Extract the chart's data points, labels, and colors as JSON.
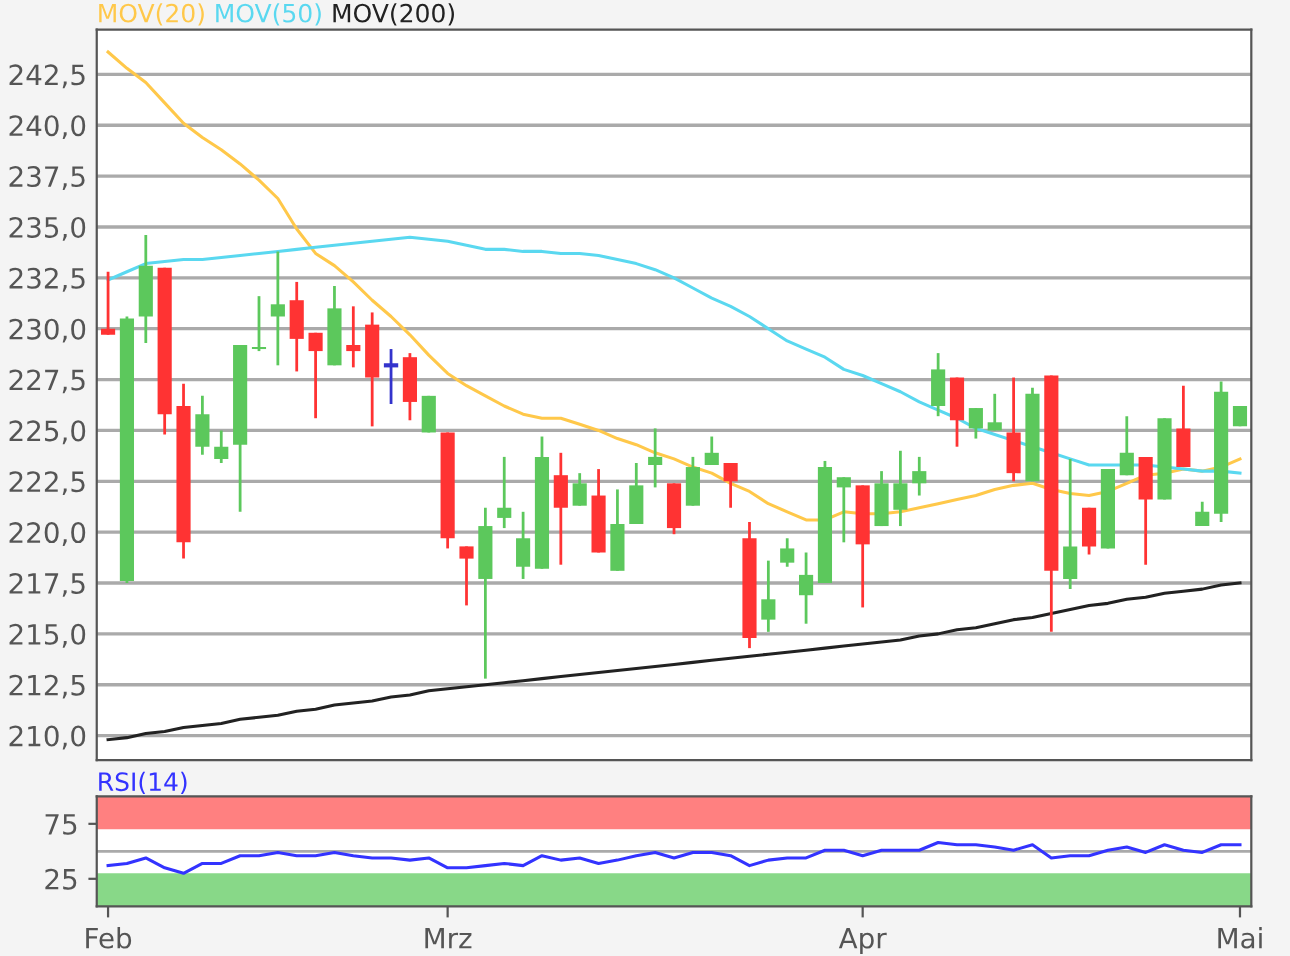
{
  "chart_data": [
    {
      "type": "candlestick",
      "categories": [
        null,
        null,
        null,
        null,
        null,
        null,
        null,
        null,
        null,
        null,
        null,
        null,
        null,
        null,
        null,
        null,
        null,
        null,
        null,
        null,
        null,
        null,
        null,
        null,
        null,
        null,
        null,
        null,
        null,
        null,
        null,
        null,
        null,
        null,
        null,
        null,
        null,
        null,
        null,
        null,
        null,
        null,
        null,
        null,
        null,
        null,
        null,
        null,
        null,
        null,
        null,
        null,
        null,
        null,
        null,
        null,
        null,
        null,
        null,
        null,
        null
      ],
      "ohlc": [
        [
          230.0,
          232.8,
          229.7,
          229.7
        ],
        [
          217.6,
          230.6,
          217.5,
          230.5
        ],
        [
          230.6,
          234.6,
          229.3,
          233.1
        ],
        [
          233.0,
          233.0,
          224.8,
          225.8
        ],
        [
          226.2,
          227.3,
          218.7,
          219.5
        ],
        [
          224.2,
          226.7,
          223.8,
          225.8
        ],
        [
          223.6,
          225.0,
          223.4,
          224.2
        ],
        [
          224.3,
          229.2,
          221.0,
          229.2
        ],
        [
          229.0,
          231.6,
          228.9,
          229.1
        ],
        [
          230.6,
          233.8,
          228.2,
          231.2
        ],
        [
          231.4,
          232.3,
          227.9,
          229.5
        ],
        [
          229.8,
          229.8,
          225.6,
          228.9
        ],
        [
          228.2,
          232.1,
          228.2,
          231.0
        ],
        [
          229.2,
          231.1,
          228.1,
          228.9
        ],
        [
          230.2,
          230.8,
          225.2,
          227.6
        ],
        [
          228.2,
          229.0,
          226.3,
          228.2
        ],
        [
          228.6,
          228.8,
          225.5,
          226.4
        ],
        [
          224.9,
          226.7,
          224.9,
          226.7
        ],
        [
          224.9,
          224.9,
          219.2,
          219.7
        ],
        [
          219.3,
          219.3,
          216.4,
          218.7
        ],
        [
          217.7,
          221.2,
          212.8,
          220.3
        ],
        [
          220.7,
          223.7,
          220.2,
          221.2
        ],
        [
          218.3,
          221.0,
          217.7,
          219.7
        ],
        [
          218.2,
          224.7,
          218.2,
          223.7
        ],
        [
          222.8,
          223.9,
          218.4,
          221.2
        ],
        [
          221.3,
          222.9,
          221.3,
          222.4
        ],
        [
          221.8,
          223.1,
          219.0,
          219.0
        ],
        [
          218.1,
          222.1,
          218.1,
          220.4
        ],
        [
          220.4,
          223.4,
          220.4,
          222.3
        ],
        [
          223.3,
          225.1,
          222.2,
          223.7
        ],
        [
          222.4,
          222.4,
          219.9,
          220.2
        ],
        [
          221.3,
          223.7,
          221.3,
          223.2
        ],
        [
          223.3,
          224.7,
          223.3,
          223.9
        ],
        [
          223.4,
          223.4,
          221.2,
          222.5
        ],
        [
          219.7,
          220.5,
          214.3,
          214.8
        ],
        [
          215.7,
          218.6,
          215.1,
          216.7
        ],
        [
          218.5,
          219.7,
          218.3,
          219.2
        ],
        [
          216.9,
          219.0,
          215.5,
          217.9
        ],
        [
          217.5,
          223.5,
          217.5,
          223.2
        ],
        [
          222.2,
          222.7,
          219.5,
          222.7
        ],
        [
          222.3,
          222.3,
          216.3,
          219.4
        ],
        [
          220.3,
          223.0,
          220.3,
          222.4
        ],
        [
          221.1,
          224.0,
          220.3,
          222.4
        ],
        [
          222.4,
          223.7,
          221.8,
          223.0
        ],
        [
          226.2,
          228.8,
          225.7,
          228.0
        ],
        [
          227.6,
          227.6,
          224.2,
          225.5
        ],
        [
          225.1,
          226.1,
          224.6,
          226.1
        ],
        [
          225.0,
          226.8,
          225.0,
          225.4
        ],
        [
          224.9,
          227.6,
          222.5,
          222.9
        ],
        [
          222.5,
          227.1,
          222.5,
          226.8
        ],
        [
          227.7,
          227.7,
          215.1,
          218.1
        ],
        [
          217.7,
          223.6,
          217.2,
          219.3
        ],
        [
          221.2,
          221.2,
          218.9,
          219.3
        ],
        [
          219.2,
          223.1,
          219.2,
          223.1
        ],
        [
          222.8,
          225.7,
          222.8,
          223.9
        ],
        [
          223.7,
          223.7,
          218.4,
          221.6
        ],
        [
          221.6,
          225.6,
          221.6,
          225.6
        ],
        [
          225.1,
          227.2,
          223.2,
          223.2
        ],
        [
          220.3,
          221.5,
          220.3,
          221.0
        ],
        [
          220.9,
          227.4,
          220.5,
          226.9
        ],
        [
          225.2,
          226.2,
          225.2,
          226.2
        ]
      ],
      "colors": [
        "#ff3333",
        "#5cc85c",
        "#5cc85c",
        "#ff3333",
        "#ff3333",
        "#5cc85c",
        "#5cc85c",
        "#5cc85c",
        "#5cc85c",
        "#5cc85c",
        "#ff3333",
        "#ff3333",
        "#5cc85c",
        "#ff3333",
        "#ff3333",
        "#3333cc",
        "#ff3333",
        "#5cc85c",
        "#ff3333",
        "#ff3333",
        "#5cc85c",
        "#5cc85c",
        "#5cc85c",
        "#5cc85c",
        "#ff3333",
        "#5cc85c",
        "#ff3333",
        "#5cc85c",
        "#5cc85c",
        "#5cc85c",
        "#ff3333",
        "#5cc85c",
        "#5cc85c",
        "#ff3333",
        "#ff3333",
        "#5cc85c",
        "#5cc85c",
        "#5cc85c",
        "#5cc85c",
        "#5cc85c",
        "#ff3333",
        "#5cc85c",
        "#5cc85c",
        "#5cc85c",
        "#5cc85c",
        "#ff3333",
        "#5cc85c",
        "#5cc85c",
        "#ff3333",
        "#5cc85c",
        "#ff3333",
        "#5cc85c",
        "#ff3333",
        "#5cc85c",
        "#5cc85c",
        "#ff3333",
        "#5cc85c",
        "#ff3333",
        "#5cc85c",
        "#5cc85c",
        "#5cc85c"
      ],
      "series": [
        {
          "name": "MOV(20)",
          "type": "line",
          "color": "#ffc84a",
          "values": [
            243.6,
            242.8,
            242.1,
            241.1,
            240.1,
            239.4,
            238.8,
            238.1,
            237.3,
            236.4,
            234.9,
            233.7,
            233.1,
            232.3,
            231.4,
            230.6,
            229.7,
            228.7,
            227.8,
            227.2,
            226.7,
            226.2,
            225.8,
            225.6,
            225.6,
            225.3,
            225.0,
            224.6,
            224.3,
            223.9,
            223.6,
            223.2,
            222.9,
            222.4,
            222.0,
            221.4,
            221.0,
            220.6,
            220.6,
            221.0,
            220.9,
            220.9,
            221.0,
            221.2,
            221.4,
            221.6,
            221.8,
            222.1,
            222.3,
            222.4,
            222.1,
            221.9,
            221.8,
            222.0,
            222.4,
            222.8,
            222.9,
            223.1,
            223.0,
            223.2,
            223.6
          ]
        },
        {
          "name": "MOV(50)",
          "type": "line",
          "color": "#5ad8f0",
          "values": [
            232.4,
            232.8,
            233.2,
            233.3,
            233.4,
            233.4,
            233.5,
            233.6,
            233.7,
            233.8,
            233.9,
            234.0,
            234.1,
            234.2,
            234.3,
            234.4,
            234.5,
            234.4,
            234.3,
            234.1,
            233.9,
            233.9,
            233.8,
            233.8,
            233.7,
            233.7,
            233.6,
            233.4,
            233.2,
            232.9,
            232.5,
            232.0,
            231.5,
            231.1,
            230.6,
            230.0,
            229.4,
            229.0,
            228.6,
            228.0,
            227.7,
            227.3,
            226.9,
            226.4,
            226.0,
            225.6,
            225.1,
            224.8,
            224.5,
            224.2,
            223.9,
            223.6,
            223.3,
            223.3,
            223.3,
            223.3,
            223.2,
            223.1,
            223.0,
            223.0,
            222.9
          ]
        },
        {
          "name": "MOV(200)",
          "type": "line",
          "color": "#222222",
          "values": [
            209.8,
            209.9,
            210.1,
            210.2,
            210.4,
            210.5,
            210.6,
            210.8,
            210.9,
            211.0,
            211.2,
            211.3,
            211.5,
            211.6,
            211.7,
            211.9,
            212.0,
            212.2,
            212.3,
            212.4,
            212.5,
            212.6,
            212.7,
            212.8,
            212.9,
            213.0,
            213.1,
            213.2,
            213.3,
            213.4,
            213.5,
            213.6,
            213.7,
            213.8,
            213.9,
            214.0,
            214.1,
            214.2,
            214.3,
            214.4,
            214.5,
            214.6,
            214.7,
            214.9,
            215.0,
            215.2,
            215.3,
            215.5,
            215.7,
            215.8,
            216.0,
            216.2,
            216.4,
            216.5,
            216.7,
            216.8,
            217.0,
            217.1,
            217.2,
            217.4,
            217.5
          ]
        }
      ],
      "ylim": [
        208.8,
        244.7
      ],
      "yticks": [
        {
          "value": 210.0,
          "label": "210,0"
        },
        {
          "value": 212.5,
          "label": "212,5"
        },
        {
          "value": 215.0,
          "label": "215,0"
        },
        {
          "value": 217.5,
          "label": "217,5"
        },
        {
          "value": 220.0,
          "label": "220,0"
        },
        {
          "value": 222.5,
          "label": "222,5"
        },
        {
          "value": 225.0,
          "label": "225,0"
        },
        {
          "value": 227.5,
          "label": "227,5"
        },
        {
          "value": 230.0,
          "label": "230,0"
        },
        {
          "value": 232.5,
          "label": "232,5"
        },
        {
          "value": 235.0,
          "label": "235,0"
        },
        {
          "value": 237.5,
          "label": "237,5"
        },
        {
          "value": 240.0,
          "label": "240,0"
        },
        {
          "value": 242.5,
          "label": "242,5"
        }
      ],
      "grid": "y",
      "legend": "top left",
      "tick_labels": "y"
    },
    {
      "type": "line",
      "categories": [
        "Feb",
        null,
        null,
        null,
        null,
        null,
        null,
        null,
        null,
        null,
        null,
        null,
        null,
        null,
        null,
        null,
        null,
        null,
        "Mrz",
        null,
        null,
        null,
        null,
        null,
        null,
        null,
        null,
        null,
        null,
        null,
        null,
        null,
        null,
        null,
        null,
        null,
        null,
        null,
        null,
        null,
        "Apr",
        null,
        null,
        null,
        null,
        null,
        null,
        null,
        null,
        null,
        null,
        null,
        null,
        null,
        null,
        null,
        null,
        null,
        null,
        null,
        "Mai"
      ],
      "series": [
        {
          "name": "RSI(14)",
          "color": "#3333ff",
          "values": [
            37,
            39,
            44,
            35,
            30,
            39,
            39,
            46,
            46,
            49,
            46,
            46,
            49,
            46,
            44,
            44,
            42,
            44,
            35,
            35,
            37,
            39,
            37,
            46,
            42,
            44,
            39,
            42,
            46,
            49,
            44,
            49,
            49,
            46,
            37,
            42,
            44,
            44,
            51,
            51,
            46,
            51,
            51,
            51,
            58,
            56,
            56,
            54,
            51,
            56,
            44,
            46,
            46,
            51,
            54,
            49,
            56,
            51,
            49,
            56,
            56
          ]
        }
      ],
      "ylim": [
        0,
        100
      ],
      "yticks": [
        25,
        75
      ],
      "ref_lines": [
        {
          "axis": "y",
          "value": 50,
          "color": "#aaaaaa"
        }
      ],
      "bands": [
        {
          "axis": "y",
          "from": 70,
          "to": 100,
          "color": "#ff8080"
        },
        {
          "axis": "y",
          "from": 0,
          "to": 30,
          "color": "#88d888"
        }
      ],
      "legend": "top left"
    }
  ]
}
